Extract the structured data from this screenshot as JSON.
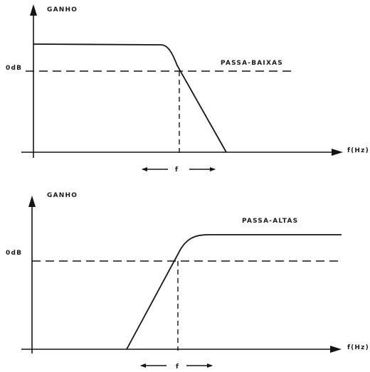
{
  "top_graph": {
    "y_axis_label": "GANHO",
    "ref_level_label": "0dB",
    "curve_label": "PASSA-BAIXAS",
    "x_axis_label": "f(Hz)",
    "shift_label": "f"
  },
  "bottom_graph": {
    "y_axis_label": "GANHO",
    "ref_level_label": "0dB",
    "curve_label": "PASSA-ALTAS",
    "x_axis_label": "f(Hz)",
    "shift_label": "f"
  }
}
